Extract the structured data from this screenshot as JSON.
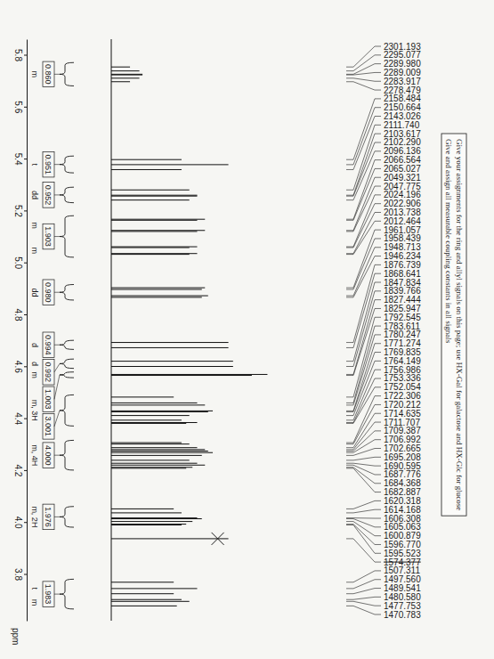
{
  "chart_data": {
    "type": "spectrum",
    "title": "Give your assignments for the ring and allyl signals on this page; use HX-Gal for galactose and HX-Glc for glucose",
    "subtitle": "Give and assign all measurable coupling constants in all signals",
    "x_label": "ppm",
    "xlim": [
      5.86,
      3.62
    ],
    "xticks": [
      5.8,
      5.6,
      5.4,
      5.2,
      {
        "value": 5,
        "label": "5.0"
      },
      4.8,
      4.6,
      4.4,
      4.2,
      {
        "value": 4,
        "label": "4.0"
      },
      3.8
    ],
    "ylim": [
      0,
      110
    ],
    "tick_labels": "x",
    "color": "#111111",
    "x": [
      5.753,
      5.7377,
      5.725,
      5.7225,
      5.7098,
      5.6962,
      5.3962,
      5.3767,
      5.3576,
      5.2794,
      5.259,
      5.2557,
      5.2403,
      5.1664,
      5.1626,
      5.1233,
      5.1194,
      5.0605,
      5.0573,
      5.0343,
      5.0312,
      4.9026,
      4.8961,
      4.8718,
      4.8656,
      4.6918,
      4.6716,
      4.6196,
      4.5994,
      4.5686,
      4.5649,
      4.4814,
      4.459,
      4.4506,
      4.4282,
      4.4246,
      4.4104,
      4.3925,
      4.3833,
      4.3801,
      4.3058,
      4.3005,
      4.2866,
      4.2793,
      4.2735,
      4.2675,
      4.2567,
      4.238,
      4.2265,
      4.2194,
      4.2109,
      4.2072,
      4.0508,
      4.0354,
      4.0158,
      4.0127,
      4.0022,
      3.9919,
      3.9888,
      3.9359,
      3.7683,
      3.7439,
      3.7239,
      3.7015,
      3.6944,
      3.677
    ],
    "values": [
      12,
      18,
      20,
      20,
      18,
      12,
      45,
      75,
      45,
      50,
      55,
      55,
      50,
      60,
      55,
      60,
      55,
      55,
      50,
      55,
      50,
      60,
      58,
      62,
      58,
      75,
      75,
      78,
      78,
      100,
      90,
      40,
      55,
      60,
      65,
      62,
      50,
      45,
      55,
      48,
      45,
      50,
      55,
      60,
      62,
      65,
      58,
      50,
      55,
      60,
      52,
      48,
      40,
      45,
      55,
      58,
      52,
      48,
      45,
      75,
      40,
      55,
      40,
      45,
      50,
      42
    ],
    "peak_labels": [
      "2301.193",
      "2295.077",
      "2289.980",
      "2289.009",
      "2283.917",
      "2278.479",
      "2158.484",
      "2150.664",
      "2143.026",
      "2111.740",
      "2103.617",
      "2102.290",
      "2096.136",
      "2066.564",
      "2065.027",
      "2049.321",
      "2047.775",
      "2024.196",
      "2022.906",
      "2013.738",
      "2012.464",
      "1961.057",
      "1958.439",
      "1948.713",
      "1946.234",
      "1876.739",
      "1868.641",
      "1847.834",
      "1839.766",
      "1827.444",
      "1825.947",
      "1792.545",
      "1783.611",
      "1780.247",
      "1771.274",
      "1769.835",
      "1764.149",
      "1756.986",
      "1753.336",
      "1752.054",
      "1722.306",
      "1720.212",
      "1714.635",
      "1711.707",
      "1709.387",
      "1706.992",
      "1702.665",
      "1695.208",
      "1690.595",
      "1687.776",
      "1684.368",
      "1682.887",
      "1620.318",
      "1614.168",
      "1606.308",
      "1605.063",
      "1600.879",
      "1596.770",
      "1595.523",
      "1574.377",
      "1507.311",
      "1497.560",
      "1489.541",
      "1480.580",
      "1477.753",
      "1470.783"
    ],
    "struck_out": [
      59
    ],
    "integrals": [
      {
        "value": 0.86,
        "label": "0.860",
        "from": 5.77,
        "to": 5.68
      },
      {
        "value": 0.951,
        "label": "0.951",
        "from": 5.41,
        "to": 5.345
      },
      {
        "value": 0.952,
        "label": "0.952",
        "from": 5.29,
        "to": 5.23
      },
      {
        "value": 1.903,
        "label": "1.903",
        "from": 5.18,
        "to": 5.02
      },
      {
        "value": 0.98,
        "label": "0.980",
        "from": 4.915,
        "to": 4.855
      },
      {
        "value": 0.994,
        "label": "0.994",
        "from": 4.7,
        "to": 4.665
      },
      {
        "value": 0.992,
        "label": "0.992",
        "from": 4.628,
        "to": 4.592
      },
      {
        "value": 1.003,
        "label": "1.003",
        "from": 4.578,
        "to": 4.556
      },
      {
        "value": 3.001,
        "label": "3.001",
        "from": 4.49,
        "to": 4.37
      },
      {
        "value": 4.0,
        "label": "4.000",
        "from": 4.315,
        "to": 4.2
      },
      {
        "value": 1.976,
        "label": "1.976",
        "from": 4.06,
        "to": 3.98
      },
      {
        "value": 1.983,
        "label": "1.983",
        "from": 3.78,
        "to": 3.665
      }
    ],
    "annotations": [
      {
        "text": "m",
        "x": 5.725
      },
      {
        "text": "t",
        "x": 5.377
      },
      {
        "text": "dd",
        "x": 5.26
      },
      {
        "text": "m",
        "x": 5.143
      },
      {
        "text": "m",
        "x": 5.046
      },
      {
        "text": "dd",
        "x": 4.884
      },
      {
        "text": "d",
        "x": 4.682
      },
      {
        "text": "d",
        "x": 4.61
      },
      {
        "text": "m",
        "x": 4.567
      },
      {
        "text": "m, 3H",
        "x": 4.43
      },
      {
        "text": "m, 4H",
        "x": 4.257
      },
      {
        "text": "m, 2H",
        "x": 4.02
      },
      {
        "text": "t",
        "x": 3.744
      },
      {
        "text": "m",
        "x": 3.69
      }
    ]
  }
}
